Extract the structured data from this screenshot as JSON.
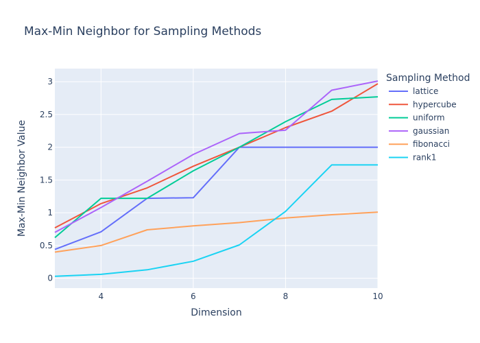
{
  "chart_data": {
    "type": "line",
    "title": "Max-Min Neighbor for Sampling Methods",
    "xlabel": "Dimension",
    "ylabel": "Max-Min Neighbor Value",
    "xlim": [
      3,
      10
    ],
    "ylim": [
      -0.15,
      3.2
    ],
    "x_ticks": [
      4,
      6,
      8,
      10
    ],
    "y_ticks": [
      0,
      0.5,
      1,
      1.5,
      2,
      2.5,
      3
    ],
    "y_tick_labels": [
      "0",
      "0.5",
      "1",
      "1.5",
      "2",
      "2.5",
      "3"
    ],
    "x_tick_labels": [
      "4",
      "6",
      "8",
      "10"
    ],
    "grid": true,
    "plot_background": "#e5ecf6",
    "legend": {
      "title": "Sampling Method",
      "placement": "right"
    },
    "x": [
      3,
      4,
      5,
      6,
      7,
      8,
      9,
      10
    ],
    "series": [
      {
        "name": "lattice",
        "color": "#636efa",
        "values": [
          0.44,
          0.71,
          1.22,
          1.23,
          2.0,
          2.0,
          2.0,
          2.0
        ]
      },
      {
        "name": "hypercube",
        "color": "#ef553b",
        "values": [
          0.77,
          1.14,
          1.38,
          1.71,
          2.0,
          2.3,
          2.55,
          2.97
        ]
      },
      {
        "name": "uniform",
        "color": "#00cc96",
        "values": [
          0.62,
          1.22,
          1.22,
          1.64,
          2.0,
          2.39,
          2.73,
          2.77
        ]
      },
      {
        "name": "gaussian",
        "color": "#ab63fa",
        "values": [
          0.7,
          1.08,
          1.48,
          1.89,
          2.21,
          2.26,
          2.87,
          3.01
        ]
      },
      {
        "name": "fibonacci",
        "color": "#ffa15a",
        "values": [
          0.4,
          0.5,
          0.74,
          0.8,
          0.85,
          0.92,
          0.97,
          1.01
        ]
      },
      {
        "name": "rank1",
        "color": "#19d3f3",
        "values": [
          0.03,
          0.06,
          0.13,
          0.26,
          0.51,
          1.02,
          1.73,
          1.73
        ]
      }
    ]
  }
}
